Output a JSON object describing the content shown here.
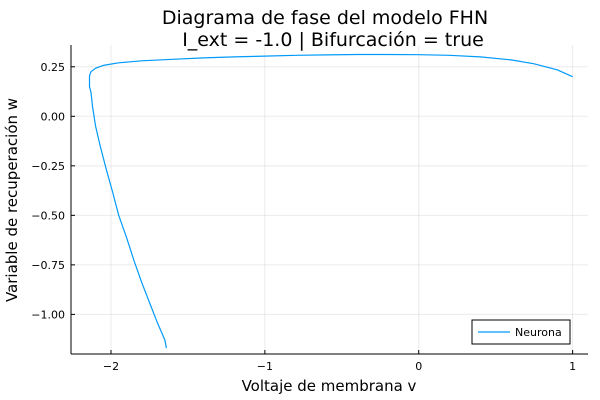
{
  "chart_data": {
    "type": "line",
    "title": "Diagrama de fase del modelo FHN",
    "subtitle": "I_ext = -1.0 | Bifurcación = true",
    "xlabel": "Voltaje de membrana v",
    "ylabel": "Variable de recuperación w",
    "xlim": [
      -2.26,
      1.1
    ],
    "ylim": [
      -1.2,
      0.36
    ],
    "xticks": [
      -2,
      -1,
      0,
      1
    ],
    "xtick_labels": [
      "−2",
      "−1",
      "0",
      "1"
    ],
    "yticks": [
      0.25,
      0.0,
      -0.25,
      -0.5,
      -0.75,
      -1.0
    ],
    "ytick_labels": [
      "0.25",
      "0.00",
      "−0.25",
      "−0.50",
      "−0.75",
      "−1.00"
    ],
    "grid": true,
    "legend_position": "bottom-right",
    "series": [
      {
        "name": "Neurona",
        "color": "#009af9",
        "x": [
          1.0,
          0.9,
          0.75,
          0.6,
          0.4,
          0.2,
          0.0,
          -0.2,
          -0.4,
          -0.6,
          -0.8,
          -1.0,
          -1.2,
          -1.4,
          -1.6,
          -1.8,
          -1.95,
          -2.05,
          -2.1,
          -2.13,
          -2.14,
          -2.14,
          -2.13,
          -2.12,
          -2.1,
          -2.07,
          -2.03,
          -1.99,
          -1.95,
          -1.9,
          -1.85,
          -1.8,
          -1.75,
          -1.7,
          -1.65,
          -1.64
        ],
        "y": [
          0.2,
          0.235,
          0.265,
          0.285,
          0.3,
          0.308,
          0.311,
          0.312,
          0.312,
          0.31,
          0.308,
          0.304,
          0.3,
          0.295,
          0.288,
          0.28,
          0.27,
          0.257,
          0.243,
          0.225,
          0.205,
          0.15,
          0.12,
          0.05,
          -0.05,
          -0.15,
          -0.27,
          -0.38,
          -0.5,
          -0.61,
          -0.73,
          -0.84,
          -0.94,
          -1.04,
          -1.13,
          -1.17
        ]
      }
    ]
  }
}
